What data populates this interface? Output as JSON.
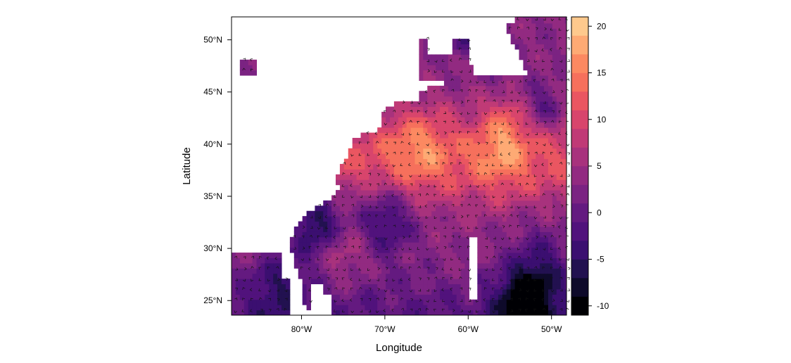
{
  "chart_data": {
    "type": "heatmap",
    "title": "",
    "xlabel": "Longitude",
    "ylabel": "Latitude",
    "xlim": [
      -88.4,
      -48.2
    ],
    "ylim": [
      23.6,
      52.2
    ],
    "x_ticks": [
      {
        "value": -80,
        "label": "80°W"
      },
      {
        "value": -70,
        "label": "70°W"
      },
      {
        "value": -60,
        "label": "60°W"
      },
      {
        "value": -50,
        "label": "50°W"
      }
    ],
    "y_ticks": [
      {
        "value": 25,
        "label": "25°N"
      },
      {
        "value": 30,
        "label": "30°N"
      },
      {
        "value": 35,
        "label": "35°N"
      },
      {
        "value": 40,
        "label": "40°N"
      },
      {
        "value": 45,
        "label": "45°N"
      },
      {
        "value": 50,
        "label": "50°N"
      }
    ],
    "colorbar": {
      "breaks": [
        -11,
        -9,
        -7,
        -5,
        -3,
        -1,
        1,
        3,
        5,
        7,
        9,
        11,
        13,
        15,
        17,
        19,
        21
      ],
      "colors": [
        "#000004",
        "#0e0a2a",
        "#221150",
        "#3b0f70",
        "#51127c",
        "#641a80",
        "#7b2382",
        "#922a81",
        "#a8327d",
        "#c03a76",
        "#d8456c",
        "#ea5661",
        "#f6705c",
        "#fc8961",
        "#feaa74",
        "#fec98d",
        "#fcfdbf"
      ],
      "tick_values": [
        -10,
        -5,
        0,
        5,
        10,
        15,
        20
      ],
      "tick_labels": [
        "-10",
        "-5",
        "0",
        "5",
        "10",
        "15",
        "20"
      ]
    },
    "overlay": "wind direction arrows (chevrons) drawn on each grid cell",
    "land_color": "#ffffff"
  }
}
